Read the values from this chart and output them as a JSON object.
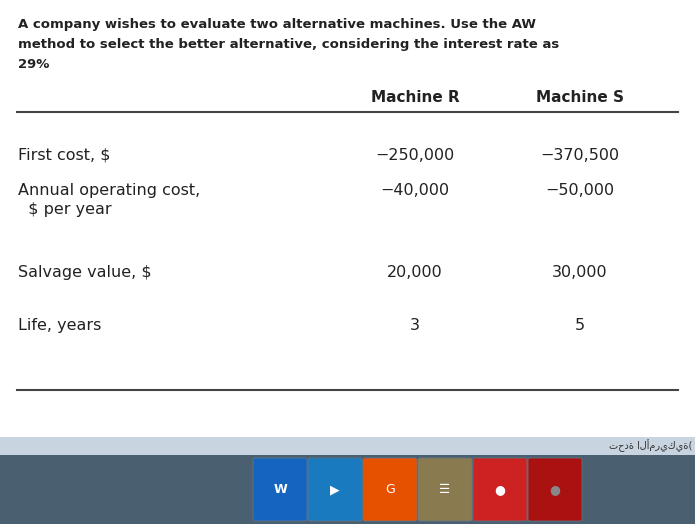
{
  "title_line1": "A company wishes to evaluate two alternative machines. Use the AW",
  "title_line2": "method to select the better alternative, considering the interest rate as",
  "title_line3": "29%",
  "col_header_r": "Machine R",
  "col_header_s": "Machine S",
  "row_labels": [
    "First cost, $",
    "Annual operating cost,\n  $ per year",
    "Salvage value, $",
    "Life, years"
  ],
  "machine_r": [
    "−250,000",
    "−40,000",
    "20,000",
    "3"
  ],
  "machine_s": [
    "−370,500",
    "−50,000",
    "30,000",
    "5"
  ],
  "bg_color": "#ffffff",
  "text_color": "#222222",
  "taskbar_bg": "#8fa8c0",
  "taskbar_top": "#c8d8e8",
  "arabic_text": "تحدة الأمريكية(",
  "fig_w": 6.95,
  "fig_h": 5.24,
  "dpi": 100
}
